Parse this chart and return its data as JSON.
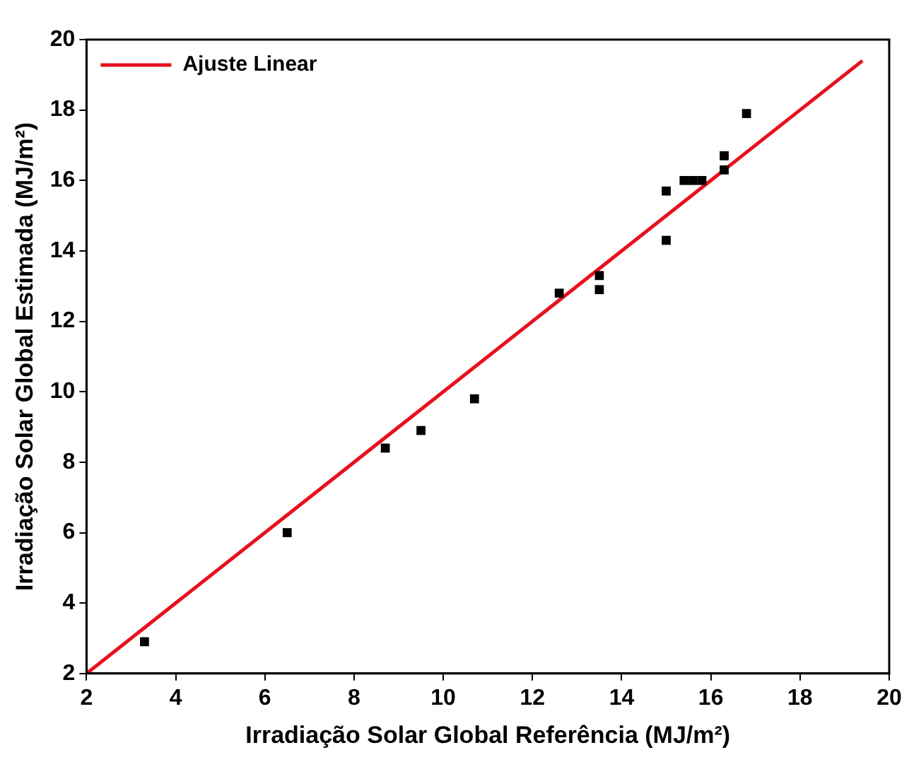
{
  "chart_data": {
    "type": "scatter",
    "xlabel": "Irradiação Solar Global Referência (MJ/m²)",
    "ylabel": "Irradiação Solar Global Estimada (MJ/m²)",
    "xlim": [
      2,
      20
    ],
    "xticks": [
      2,
      4,
      6,
      8,
      10,
      12,
      14,
      16,
      18,
      20
    ],
    "ylim": [
      2,
      20
    ],
    "yticks": [
      2,
      4,
      6,
      8,
      10,
      12,
      14,
      16,
      18,
      20
    ],
    "grid": false,
    "legend": "top left",
    "marker": "square",
    "series": [
      {
        "color": "#000000",
        "x": [
          3.3,
          6.5,
          8.7,
          9.5,
          10.7,
          12.6,
          13.5,
          13.5,
          15.0,
          15.0,
          15.4,
          15.6,
          15.8,
          16.3,
          16.3,
          16.8
        ],
        "values": [
          2.9,
          6.0,
          8.4,
          8.9,
          9.8,
          12.8,
          13.3,
          12.9,
          15.7,
          14.3,
          16.0,
          16.0,
          16.0,
          16.3,
          16.7,
          17.9
        ]
      },
      {
        "type": "line",
        "name": "Ajuste Linear",
        "color": "#e8101c",
        "x": [
          2,
          19.4
        ],
        "values": [
          2.0,
          19.4
        ],
        "line_style": "solid",
        "marker": "none"
      }
    ]
  }
}
